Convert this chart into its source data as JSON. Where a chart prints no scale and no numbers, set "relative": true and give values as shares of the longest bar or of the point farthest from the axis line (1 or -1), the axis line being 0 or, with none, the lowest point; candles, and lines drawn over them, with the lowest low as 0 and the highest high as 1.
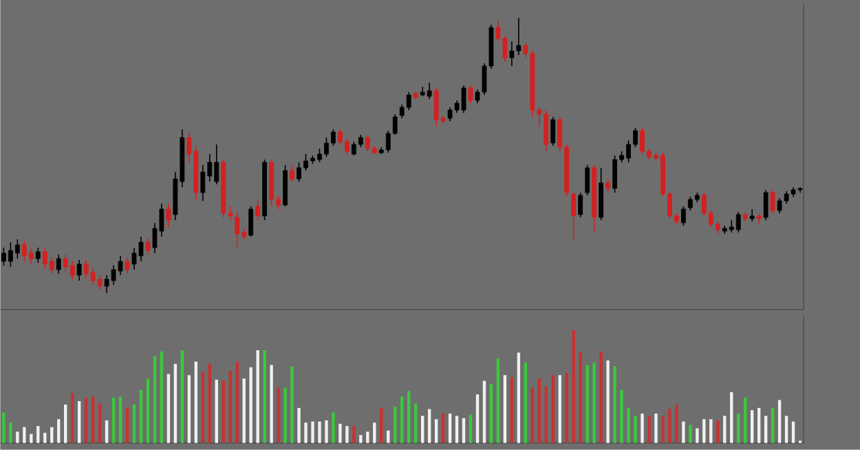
{
  "chart_data": [
    {
      "type": "candlestick",
      "categories": [
        null,
        null,
        null,
        null,
        null,
        null,
        null,
        null,
        null,
        null,
        null,
        null,
        null,
        null,
        null,
        null,
        null,
        null,
        null,
        null,
        null,
        null,
        null,
        null,
        null,
        null,
        null,
        null,
        null,
        null,
        null,
        null,
        null,
        null,
        null,
        null,
        null,
        null,
        null,
        null,
        null,
        null,
        null,
        null,
        null,
        null,
        null,
        null,
        null,
        null,
        null,
        null,
        null,
        null,
        null,
        null,
        null,
        null,
        null,
        null,
        null,
        null,
        null,
        null,
        null,
        null,
        null,
        null,
        null,
        null,
        null,
        null,
        null,
        null,
        null,
        null,
        null,
        null,
        null,
        null,
        null,
        null,
        null,
        null,
        null,
        null,
        null,
        null,
        null,
        null,
        null,
        null,
        null,
        null,
        null,
        null,
        null,
        null,
        null,
        null,
        null,
        null,
        null,
        null,
        null,
        null,
        null,
        null,
        null,
        null,
        null,
        null,
        null,
        null,
        null,
        null,
        null
      ],
      "ohlc": [
        [
          0.115,
          0.165,
          0.1,
          0.145
        ],
        [
          0.115,
          0.185,
          0.095,
          0.155
        ],
        [
          0.145,
          0.195,
          0.125,
          0.175
        ],
        [
          0.175,
          0.19,
          0.115,
          0.135
        ],
        [
          0.145,
          0.16,
          0.105,
          0.125
        ],
        [
          0.125,
          0.165,
          0.11,
          0.15
        ],
        [
          0.15,
          0.165,
          0.085,
          0.105
        ],
        [
          0.115,
          0.13,
          0.07,
          0.085
        ],
        [
          0.085,
          0.14,
          0.07,
          0.125
        ],
        [
          0.125,
          0.14,
          0.075,
          0.095
        ],
        [
          0.1,
          0.115,
          0.05,
          0.065
        ],
        [
          0.065,
          0.12,
          0.045,
          0.105
        ],
        [
          0.105,
          0.12,
          0.05,
          0.07
        ],
        [
          0.075,
          0.09,
          0.03,
          0.045
        ],
        [
          0.05,
          0.065,
          0.01,
          0.025
        ],
        [
          0.025,
          0.065,
          0,
          0.05
        ],
        [
          0.045,
          0.1,
          0.03,
          0.085
        ],
        [
          0.08,
          0.135,
          0.065,
          0.115
        ],
        [
          0.115,
          0.13,
          0.07,
          0.085
        ],
        [
          0.105,
          0.165,
          0.085,
          0.145
        ],
        [
          0.135,
          0.205,
          0.115,
          0.185
        ],
        [
          0.185,
          0.2,
          0.14,
          0.155
        ],
        [
          0.165,
          0.255,
          0.145,
          0.235
        ],
        [
          0.225,
          0.325,
          0.205,
          0.305
        ],
        [
          0.305,
          0.325,
          0.24,
          0.265
        ],
        [
          0.285,
          0.44,
          0.265,
          0.415
        ],
        [
          0.405,
          0.595,
          0.385,
          0.565
        ],
        [
          0.565,
          0.585,
          0.475,
          0.505
        ],
        [
          0.515,
          0.535,
          0.335,
          0.365
        ],
        [
          0.365,
          0.465,
          0.335,
          0.44
        ],
        [
          0.425,
          0.505,
          0.405,
          0.475
        ],
        [
          0.405,
          0.54,
          0.395,
          0.475
        ],
        [
          0.475,
          0.485,
          0.275,
          0.29
        ],
        [
          0.29,
          0.315,
          0.265,
          0.28
        ],
        [
          0.275,
          0.295,
          0.165,
          0.215
        ],
        [
          0.22,
          0.235,
          0.195,
          0.205
        ],
        [
          0.21,
          0.315,
          0.205,
          0.305
        ],
        [
          0.315,
          0.34,
          0.265,
          0.28
        ],
        [
          0.28,
          0.485,
          0.265,
          0.475
        ],
        [
          0.475,
          0.485,
          0.315,
          0.34
        ],
        [
          0.34,
          0.355,
          0.305,
          0.32
        ],
        [
          0.32,
          0.465,
          0.315,
          0.445
        ],
        [
          0.445,
          0.465,
          0.405,
          0.415
        ],
        [
          0.415,
          0.475,
          0.405,
          0.455
        ],
        [
          0.455,
          0.505,
          0.445,
          0.48
        ],
        [
          0.48,
          0.5,
          0.47,
          0.49
        ],
        [
          0.485,
          0.525,
          0.475,
          0.505
        ],
        [
          0.505,
          0.565,
          0.495,
          0.545
        ],
        [
          0.545,
          0.595,
          0.535,
          0.585
        ],
        [
          0.585,
          0.595,
          0.54,
          0.55
        ],
        [
          0.55,
          0.56,
          0.505,
          0.515
        ],
        [
          0.505,
          0.55,
          0.5,
          0.54
        ],
        [
          0.54,
          0.575,
          0.53,
          0.565
        ],
        [
          0.565,
          0.575,
          0.515,
          0.525
        ],
        [
          0.525,
          0.535,
          0.505,
          0.51
        ],
        [
          0.51,
          0.53,
          0.505,
          0.52
        ],
        [
          0.52,
          0.59,
          0.51,
          0.58
        ],
        [
          0.58,
          0.65,
          0.575,
          0.64
        ],
        [
          0.645,
          0.685,
          0.635,
          0.675
        ],
        [
          0.675,
          0.73,
          0.665,
          0.72
        ],
        [
          0.725,
          0.735,
          0.705,
          0.71
        ],
        [
          0.72,
          0.75,
          0.715,
          0.73
        ],
        [
          0.715,
          0.765,
          0.705,
          0.735
        ],
        [
          0.735,
          0.745,
          0.605,
          0.63
        ],
        [
          0.635,
          0.645,
          0.615,
          0.625
        ],
        [
          0.635,
          0.675,
          0.625,
          0.665
        ],
        [
          0.665,
          0.7,
          0.655,
          0.69
        ],
        [
          0.665,
          0.755,
          0.655,
          0.745
        ],
        [
          0.745,
          0.755,
          0.69,
          0.7
        ],
        [
          0.7,
          0.74,
          0.69,
          0.73
        ],
        [
          0.73,
          0.835,
          0.72,
          0.825
        ],
        [
          0.825,
          0.975,
          0.815,
          0.965
        ],
        [
          0.965,
          0.99,
          0.915,
          0.925
        ],
        [
          0.925,
          0.935,
          0.84,
          0.855
        ],
        [
          0.855,
          0.915,
          0.825,
          0.88
        ],
        [
          0.88,
          1,
          0.865,
          0.9
        ],
        [
          0.9,
          0.91,
          0.855,
          0.87
        ],
        [
          0.87,
          0.88,
          0.64,
          0.665
        ],
        [
          0.665,
          0.675,
          0.605,
          0.65
        ],
        [
          0.65,
          0.665,
          0.515,
          0.54
        ],
        [
          0.545,
          0.64,
          0.535,
          0.63
        ],
        [
          0.63,
          0.64,
          0.515,
          0.53
        ],
        [
          0.53,
          0.54,
          0.35,
          0.365
        ],
        [
          0.36,
          0.365,
          0.19,
          0.28
        ],
        [
          0.285,
          0.365,
          0.275,
          0.355
        ],
        [
          0.365,
          0.465,
          0.355,
          0.455
        ],
        [
          0.455,
          0.465,
          0.225,
          0.275
        ],
        [
          0.275,
          0.455,
          0.265,
          0.4
        ],
        [
          0.4,
          0.415,
          0.365,
          0.38
        ],
        [
          0.38,
          0.5,
          0.365,
          0.485
        ],
        [
          0.485,
          0.515,
          0.475,
          0.5
        ],
        [
          0.49,
          0.555,
          0.475,
          0.54
        ],
        [
          0.54,
          0.6,
          0.53,
          0.59
        ],
        [
          0.59,
          0.6,
          0.505,
          0.515
        ],
        [
          0.515,
          0.525,
          0.485,
          0.495
        ],
        [
          0.5,
          0.51,
          0.48,
          0.49
        ],
        [
          0.5,
          0.51,
          0.35,
          0.36
        ],
        [
          0.36,
          0.37,
          0.27,
          0.28
        ],
        [
          0.28,
          0.29,
          0.25,
          0.26
        ],
        [
          0.255,
          0.315,
          0.245,
          0.305
        ],
        [
          0.31,
          0.35,
          0.3,
          0.34
        ],
        [
          0.34,
          0.365,
          0.33,
          0.355
        ],
        [
          0.355,
          0.365,
          0.28,
          0.29
        ],
        [
          0.29,
          0.3,
          0.24,
          0.25
        ],
        [
          0.25,
          0.26,
          0.215,
          0.23
        ],
        [
          0.225,
          0.245,
          0.215,
          0.235
        ],
        [
          0.23,
          0.265,
          0.22,
          0.24
        ],
        [
          0.23,
          0.295,
          0.22,
          0.285
        ],
        [
          0.285,
          0.295,
          0.26,
          0.27
        ],
        [
          0.27,
          0.305,
          0.26,
          0.28
        ],
        [
          0.28,
          0.29,
          0.25,
          0.27
        ],
        [
          0.275,
          0.375,
          0.265,
          0.365
        ],
        [
          0.365,
          0.375,
          0.29,
          0.3
        ],
        [
          0.3,
          0.345,
          0.29,
          0.335
        ],
        [
          0.335,
          0.37,
          0.325,
          0.36
        ],
        [
          0.36,
          0.385,
          0.35,
          0.375
        ],
        [
          0.375,
          0.385,
          0.365,
          0.38
        ]
      ],
      "colors": [
        "#000000",
        "#000000",
        "#000000",
        "#d42020",
        "#d42020",
        "#000000",
        "#d42020",
        "#d42020",
        "#000000",
        "#d42020",
        "#d42020",
        "#000000",
        "#d42020",
        "#d42020",
        "#d42020",
        "#000000",
        "#000000",
        "#000000",
        "#d42020",
        "#000000",
        "#000000",
        "#d42020",
        "#000000",
        "#000000",
        "#d42020",
        "#000000",
        "#000000",
        "#d42020",
        "#d42020",
        "#000000",
        "#000000",
        "#000000",
        "#d42020",
        "#d42020",
        "#d42020",
        "#d42020",
        "#000000",
        "#d42020",
        "#000000",
        "#d42020",
        "#d42020",
        "#000000",
        "#d42020",
        "#000000",
        "#000000",
        "#000000",
        "#000000",
        "#000000",
        "#000000",
        "#d42020",
        "#d42020",
        "#000000",
        "#000000",
        "#d42020",
        "#d42020",
        "#000000",
        "#000000",
        "#000000",
        "#000000",
        "#000000",
        "#d42020",
        "#000000",
        "#000000",
        "#d42020",
        "#d42020",
        "#000000",
        "#000000",
        "#000000",
        "#d42020",
        "#000000",
        "#000000",
        "#000000",
        "#d42020",
        "#d42020",
        "#000000",
        "#000000",
        "#d42020",
        "#d42020",
        "#d42020",
        "#d42020",
        "#000000",
        "#d42020",
        "#d42020",
        "#d42020",
        "#000000",
        "#000000",
        "#d42020",
        "#000000",
        "#d42020",
        "#000000",
        "#000000",
        "#000000",
        "#000000",
        "#d42020",
        "#d42020",
        "#d42020",
        "#d42020",
        "#d42020",
        "#d42020",
        "#000000",
        "#000000",
        "#000000",
        "#d42020",
        "#d42020",
        "#d42020",
        "#000000",
        "#000000",
        "#000000",
        "#d42020",
        "#000000",
        "#d42020",
        "#000000",
        "#d42020",
        "#000000",
        "#000000",
        "#000000",
        "#000000"
      ],
      "relative": true
    },
    {
      "type": "bar",
      "relative": true,
      "categories": [
        null,
        null,
        null,
        null,
        null,
        null,
        null,
        null,
        null,
        null,
        null,
        null,
        null,
        null,
        null,
        null,
        null,
        null,
        null,
        null,
        null,
        null,
        null,
        null,
        null,
        null,
        null,
        null,
        null,
        null,
        null,
        null,
        null,
        null,
        null,
        null,
        null,
        null,
        null,
        null,
        null,
        null,
        null,
        null,
        null,
        null,
        null,
        null,
        null,
        null,
        null,
        null,
        null,
        null,
        null,
        null,
        null,
        null,
        null,
        null,
        null,
        null,
        null,
        null,
        null,
        null,
        null,
        null,
        null,
        null,
        null,
        null,
        null,
        null,
        null,
        null,
        null,
        null,
        null,
        null,
        null,
        null,
        null,
        null,
        null,
        null,
        null,
        null,
        null,
        null,
        null,
        null,
        null,
        null,
        null,
        null,
        null,
        null,
        null,
        null,
        null,
        null,
        null,
        null,
        null,
        null,
        null,
        null,
        null,
        null,
        null,
        null,
        null,
        null,
        null,
        null,
        null
      ],
      "values": [
        0.27,
        0.18,
        0.1,
        0.14,
        0.08,
        0.15,
        0.09,
        0.14,
        0.21,
        0.34,
        0.44,
        0.37,
        0.4,
        0.41,
        0.35,
        0.2,
        0.4,
        0.41,
        0.31,
        0.34,
        0.47,
        0.57,
        0.77,
        0.81,
        0.61,
        0.7,
        0.82,
        0.6,
        0.72,
        0.63,
        0.7,
        0.56,
        0.55,
        0.64,
        0.72,
        0.57,
        0.67,
        0.82,
        0.82,
        0.69,
        0.49,
        0.49,
        0.68,
        0.31,
        0.18,
        0.19,
        0.19,
        0.2,
        0.27,
        0.17,
        0.15,
        0.15,
        0.07,
        0.1,
        0.18,
        0.31,
        0.11,
        0.32,
        0.41,
        0.46,
        0.35,
        0.24,
        0.3,
        0.21,
        0.26,
        0.26,
        0.24,
        0.22,
        0.25,
        0.43,
        0.55,
        0.52,
        0.75,
        0.6,
        0.58,
        0.8,
        0.71,
        0.49,
        0.57,
        0.5,
        0.6,
        0.6,
        0.62,
        1,
        0.81,
        0.69,
        0.71,
        0.81,
        0.73,
        0.68,
        0.47,
        0.31,
        0.24,
        0.26,
        0.24,
        0.26,
        0.24,
        0.3,
        0.34,
        0.19,
        0.16,
        0.13,
        0.21,
        0.21,
        0.2,
        0.24,
        0.45,
        0.26,
        0.4,
        0.29,
        0.31,
        0.24,
        0.31,
        0.38,
        0.24,
        0.19,
        0.02
      ],
      "colors": [
        "#3cc83c",
        "#3cc83c",
        "#f0f0f0",
        "#f0f0f0",
        "#f0f0f0",
        "#f0f0f0",
        "#f0f0f0",
        "#f0f0f0",
        "#f0f0f0",
        "#f0f0f0",
        "#c83232",
        "#f0f0f0",
        "#c83232",
        "#c83232",
        "#c83232",
        "#f0f0f0",
        "#3cc83c",
        "#3cc83c",
        "#c83232",
        "#3cc83c",
        "#3cc83c",
        "#3cc83c",
        "#3cc83c",
        "#3cc83c",
        "#f0f0f0",
        "#f0f0f0",
        "#3cc83c",
        "#f0f0f0",
        "#f0f0f0",
        "#c83232",
        "#c83232",
        "#f0f0f0",
        "#c83232",
        "#c83232",
        "#c83232",
        "#f0f0f0",
        "#f0f0f0",
        "#f0f0f0",
        "#3cc83c",
        "#f0f0f0",
        "#c83232",
        "#3cc83c",
        "#3cc83c",
        "#f0f0f0",
        "#f0f0f0",
        "#f0f0f0",
        "#f0f0f0",
        "#f0f0f0",
        "#3cc83c",
        "#f0f0f0",
        "#f0f0f0",
        "#c83232",
        "#f0f0f0",
        "#f0f0f0",
        "#f0f0f0",
        "#c83232",
        "#f0f0f0",
        "#3cc83c",
        "#3cc83c",
        "#3cc83c",
        "#3cc83c",
        "#f0f0f0",
        "#f0f0f0",
        "#f0f0f0",
        "#c83232",
        "#f0f0f0",
        "#f0f0f0",
        "#f0f0f0",
        "#3cc83c",
        "#f0f0f0",
        "#f0f0f0",
        "#3cc83c",
        "#3cc83c",
        "#f0f0f0",
        "#c83232",
        "#f0f0f0",
        "#3cc83c",
        "#c83232",
        "#c83232",
        "#c83232",
        "#c83232",
        "#f0f0f0",
        "#c83232",
        "#c83232",
        "#c83232",
        "#3cc83c",
        "#3cc83c",
        "#c83232",
        "#f0f0f0",
        "#3cc83c",
        "#3cc83c",
        "#3cc83c",
        "#3cc83c",
        "#f0f0f0",
        "#c83232",
        "#f0f0f0",
        "#c83232",
        "#c83232",
        "#c83232",
        "#f0f0f0",
        "#3cc83c",
        "#f0f0f0",
        "#f0f0f0",
        "#f0f0f0",
        "#c83232",
        "#f0f0f0",
        "#f0f0f0",
        "#3cc83c",
        "#3cc83c",
        "#f0f0f0",
        "#f0f0f0",
        "#f0f0f0",
        "#3cc83c",
        "#f0f0f0",
        "#f0f0f0",
        "#f0f0f0",
        "#f0f0f0"
      ]
    }
  ]
}
